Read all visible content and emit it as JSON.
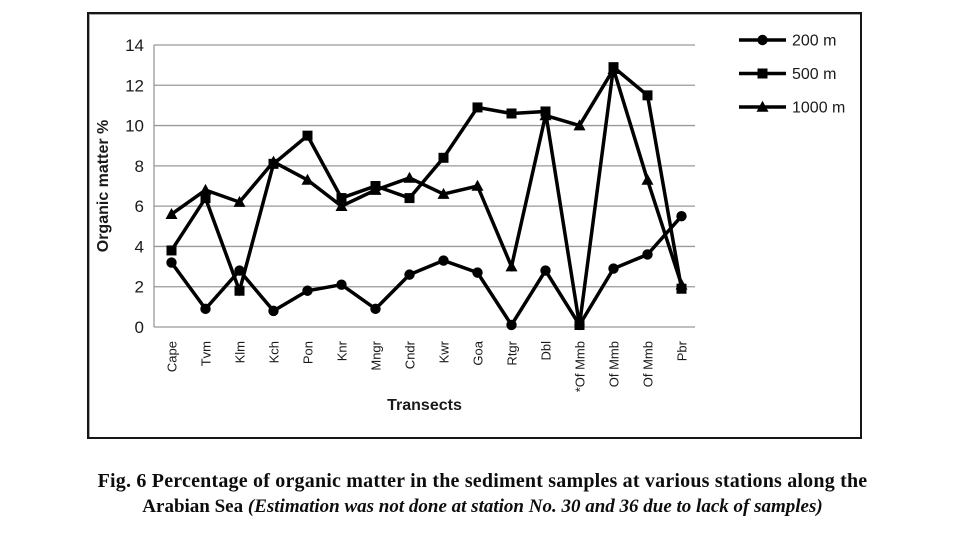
{
  "figure": {
    "caption_line1": "Fig. 6 Percentage of organic matter in the sediment samples at various stations along the",
    "caption_line2_normal": "Arabian Sea ",
    "caption_line2_italic": "(Estimation was not done at station No.  30 and 36 due to lack of samples)"
  },
  "chart_data": {
    "type": "line",
    "title": "",
    "xlabel": "Transects",
    "ylabel": "Organic matter %",
    "ylim": [
      0,
      14
    ],
    "ytick_step": 2,
    "grid": true,
    "legend_position": "top-right",
    "categories": [
      "Cape",
      "Tvm",
      "Klm",
      "Kch",
      "Pon",
      "Knr",
      "Mngr",
      "Cndr",
      "Kwr",
      "Goa",
      "Rtgr",
      "Dbl",
      "*Of Mmb",
      "Of Mmb",
      "Of Mmb",
      "Pbr"
    ],
    "series": [
      {
        "name": "200 m",
        "marker": "circle",
        "values": [
          3.2,
          0.9,
          2.8,
          0.8,
          1.8,
          2.1,
          0.9,
          2.6,
          3.3,
          2.7,
          0.1,
          2.8,
          0.1,
          2.9,
          3.6,
          5.5
        ]
      },
      {
        "name": "500 m",
        "marker": "square",
        "values": [
          3.8,
          6.4,
          1.8,
          8.1,
          9.5,
          6.4,
          7.0,
          6.4,
          8.4,
          10.9,
          10.6,
          10.7,
          0.1,
          12.9,
          11.5,
          1.9
        ]
      },
      {
        "name": "1000 m",
        "marker": "triangle",
        "values": [
          5.6,
          6.8,
          6.2,
          8.2,
          7.3,
          6.0,
          6.8,
          7.4,
          6.6,
          7.0,
          3.0,
          10.5,
          10.0,
          12.8,
          7.3,
          2.1
        ]
      }
    ],
    "colors": {
      "line": "#000000",
      "grid": "#999999",
      "text": "#1a1a1a",
      "background": "#ffffff"
    }
  }
}
